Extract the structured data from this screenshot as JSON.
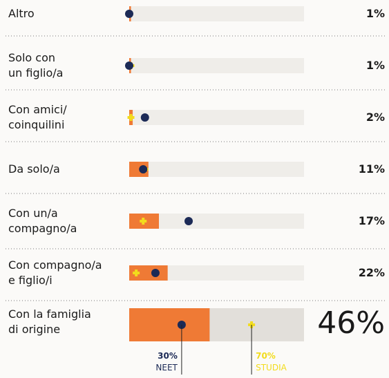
{
  "chart_data": {
    "type": "bar",
    "categories": [
      "Altro",
      "Solo con\nun figlio/a",
      "Con amici/\ncoinquilini",
      "Da solo/a",
      "Con un/a\ncompagno/a",
      "Con compagno/a\ne figlio/i",
      "Con la famiglia\ndi origine"
    ],
    "values": [
      1,
      1,
      2,
      11,
      17,
      22,
      46
    ],
    "value_labels": [
      "1%",
      "1%",
      "2%",
      "11%",
      "17%",
      "22%",
      "46%"
    ],
    "color": "#ef7a35",
    "xlim": [
      0,
      100
    ],
    "series": [
      {
        "name": "NEET",
        "color": "#1c2a56",
        "values": [
          0,
          0,
          9,
          8,
          34,
          15,
          30
        ],
        "value_label": "30%"
      },
      {
        "name": "STUDIA",
        "color": "#f2dc1c",
        "values": [
          0,
          1,
          1,
          9,
          8,
          4,
          70
        ],
        "value_label": "70%"
      }
    ]
  }
}
